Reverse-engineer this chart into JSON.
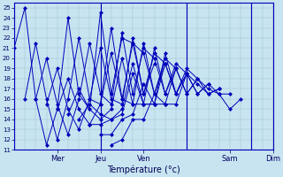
{
  "xlabel": "Température (°c)",
  "background_color": "#c8e4f0",
  "line_color": "#0000bb",
  "marker": "D",
  "ylim": [
    11,
    25.5
  ],
  "yticks": [
    11,
    12,
    13,
    14,
    15,
    16,
    17,
    18,
    19,
    20,
    21,
    22,
    23,
    24,
    25
  ],
  "xlim": [
    0,
    48
  ],
  "day_labels": [
    "Mer",
    "Jeu",
    "Ven",
    "Sam",
    "Dim"
  ],
  "day_x": [
    8,
    16,
    24,
    40,
    48
  ],
  "day_sep_x": [
    0,
    16,
    32,
    44,
    48
  ],
  "series": [
    {
      "start": 0,
      "values": [
        21.0,
        25.0,
        16.0,
        11.5,
        15.0,
        24.0,
        16.5,
        15.0,
        24.5,
        16.5,
        22.0,
        21.5,
        16.5,
        19.5
      ]
    },
    {
      "start": 2,
      "values": [
        16.0,
        21.5,
        16.0,
        12.0,
        16.0,
        22.0,
        16.0,
        15.5,
        23.0,
        16.0,
        21.5,
        20.5,
        16.5,
        19.5
      ]
    },
    {
      "start": 4,
      "values": [
        16.0,
        20.0,
        15.5,
        12.5,
        16.0,
        21.5,
        16.5,
        15.5,
        22.5,
        16.5,
        21.0,
        20.0,
        16.5,
        19.0
      ]
    },
    {
      "start": 6,
      "values": [
        15.5,
        19.0,
        15.0,
        13.0,
        16.0,
        21.0,
        16.0,
        15.5,
        22.0,
        16.5,
        20.5,
        19.5,
        16.5,
        18.5
      ]
    },
    {
      "start": 8,
      "values": [
        15.0,
        18.0,
        15.0,
        13.5,
        15.5,
        20.5,
        16.0,
        15.5,
        21.5,
        16.5,
        20.0,
        19.0,
        16.5,
        18.0
      ]
    },
    {
      "start": 10,
      "values": [
        14.5,
        17.0,
        15.0,
        14.0,
        15.0,
        20.0,
        15.5,
        15.5,
        21.0,
        16.5,
        19.5,
        18.5,
        16.5,
        17.5
      ]
    },
    {
      "start": 12,
      "values": [
        14.0,
        15.5,
        14.5,
        14.0,
        15.0,
        19.5,
        15.5,
        15.5,
        20.5,
        16.5,
        19.0,
        18.0,
        16.5,
        17.0
      ]
    },
    {
      "start": 14,
      "values": [
        13.5,
        13.5,
        14.0,
        14.5,
        18.5,
        15.5,
        15.5,
        19.5,
        16.5,
        18.5,
        17.5,
        16.5,
        17.0
      ]
    },
    {
      "start": 16,
      "values": [
        12.5,
        12.5,
        14.0,
        14.5,
        17.5,
        15.5,
        15.5,
        19.0,
        16.5,
        18.0,
        17.0,
        16.5,
        16.5
      ]
    },
    {
      "start": 18,
      "values": [
        11.5,
        12.0,
        14.0,
        14.0,
        16.5,
        15.5,
        15.5,
        18.5,
        16.5,
        17.5,
        16.5,
        15.0,
        16.0
      ]
    }
  ]
}
